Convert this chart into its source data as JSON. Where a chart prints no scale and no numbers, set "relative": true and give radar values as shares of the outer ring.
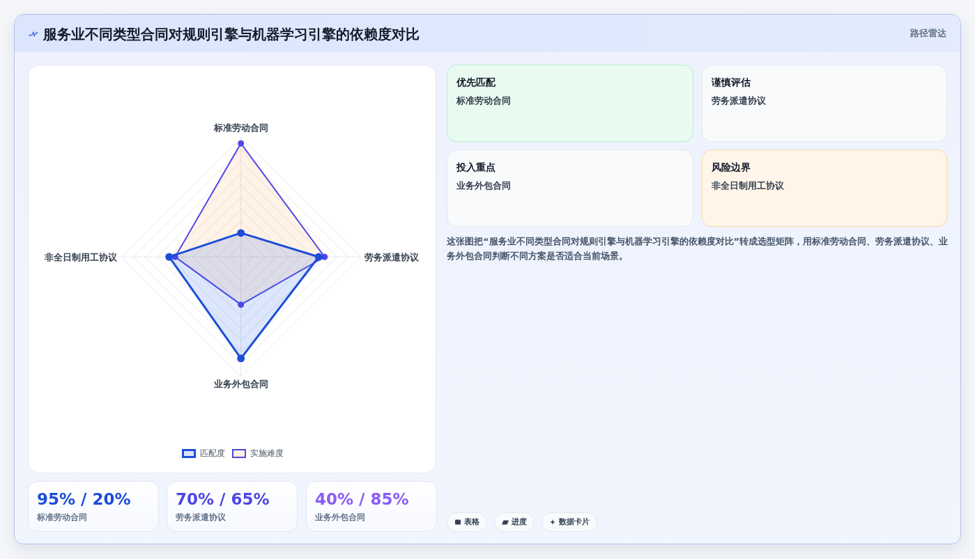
{
  "chart_data": [
    {
      "type": "other",
      "title": "服务业不同类型合同对规则引擎与机器学习引擎的依赖度对比",
      "subtitle": "路径雷达"
    },
    {
      "type": "radar",
      "categories": [
        "标准劳动合同",
        "劳务派遣协议",
        "业务外包合同",
        "非全日制用工协议"
      ],
      "relative": true,
      "grid": true,
      "legend": "bottom",
      "marker": "circle",
      "series": [
        {
          "name": "匹配度",
          "color": "#1d4ed8",
          "values": [
            0.2,
            0.65,
            0.85,
            0.6
          ]
        },
        {
          "name": "实施难度",
          "color": "#4f46e5",
          "values": [
            0.95,
            0.7,
            0.4,
            0.55
          ]
        }
      ]
    },
    {
      "type": "other",
      "title": "95% / 20%",
      "subtitle": "标准劳动合同"
    },
    {
      "type": "other",
      "title": "70% / 65%",
      "subtitle": "劳务派遣协议"
    },
    {
      "type": "other",
      "title": "40% / 85%",
      "subtitle": "业务外包合同"
    },
    {
      "type": "other",
      "title": "优先匹配",
      "subtitle": "标准劳动合同"
    },
    {
      "type": "other",
      "title": "谨慎评估",
      "subtitle": "劳务派遣协议"
    },
    {
      "type": "other",
      "title": "投入重点",
      "subtitle": "业务外包合同"
    },
    {
      "type": "other",
      "title": "风险边界",
      "subtitle": "非全日制用工协议"
    },
    {
      "type": "other",
      "annotations": [
        "这张图把“服务业不同类型合同对规则引擎与机器学习引擎的依赖度对比”转成选型矩阵，用标准劳动合同、劳务派遣协议、业务外包合同判断不同方案是否适合当前场景。"
      ]
    },
    {
      "type": "other",
      "annotations": [
        "表格",
        "进度",
        "数据卡片"
      ]
    }
  ]
}
